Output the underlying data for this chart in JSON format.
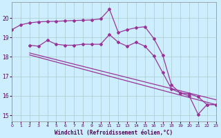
{
  "xlabel": "Windchill (Refroidissement éolien,°C)",
  "bg_color": "#cceeff",
  "grid_color": "#aacccc",
  "line_color": "#993399",
  "x_ticks": [
    0,
    1,
    2,
    3,
    4,
    5,
    6,
    7,
    8,
    9,
    10,
    11,
    12,
    13,
    14,
    15,
    16,
    17,
    18,
    19,
    20,
    21,
    22,
    23
  ],
  "y_ticks": [
    15,
    16,
    17,
    18,
    19,
    20
  ],
  "xlim": [
    0,
    23
  ],
  "ylim": [
    14.7,
    20.8
  ],
  "series1_x": [
    0,
    1,
    2,
    3,
    4,
    5,
    6,
    7,
    8,
    9,
    10,
    11,
    12,
    13,
    14,
    15,
    16,
    17,
    18,
    19,
    20,
    21,
    22,
    23
  ],
  "series1_y": [
    19.4,
    19.65,
    19.75,
    19.8,
    19.82,
    19.83,
    19.85,
    19.87,
    19.88,
    19.9,
    19.95,
    20.45,
    19.25,
    19.4,
    19.5,
    19.55,
    18.95,
    18.1,
    16.55,
    16.15,
    16.1,
    15.95,
    15.55,
    15.55
  ],
  "series2_x": [
    2,
    3,
    4,
    5,
    6,
    7,
    8,
    9,
    10,
    11,
    12,
    13,
    14,
    15,
    16,
    17,
    18,
    19,
    20,
    21,
    22,
    23
  ],
  "series2_y": [
    18.6,
    18.55,
    18.85,
    18.65,
    18.6,
    18.6,
    18.65,
    18.65,
    18.65,
    19.15,
    18.75,
    18.55,
    18.75,
    18.55,
    18.05,
    17.2,
    16.35,
    16.15,
    16.0,
    15.05,
    15.55,
    15.55
  ],
  "series3_x": [
    2,
    23
  ],
  "series3_y": [
    18.2,
    15.8
  ],
  "series4_x": [
    2,
    23
  ],
  "series4_y": [
    18.1,
    15.55
  ]
}
